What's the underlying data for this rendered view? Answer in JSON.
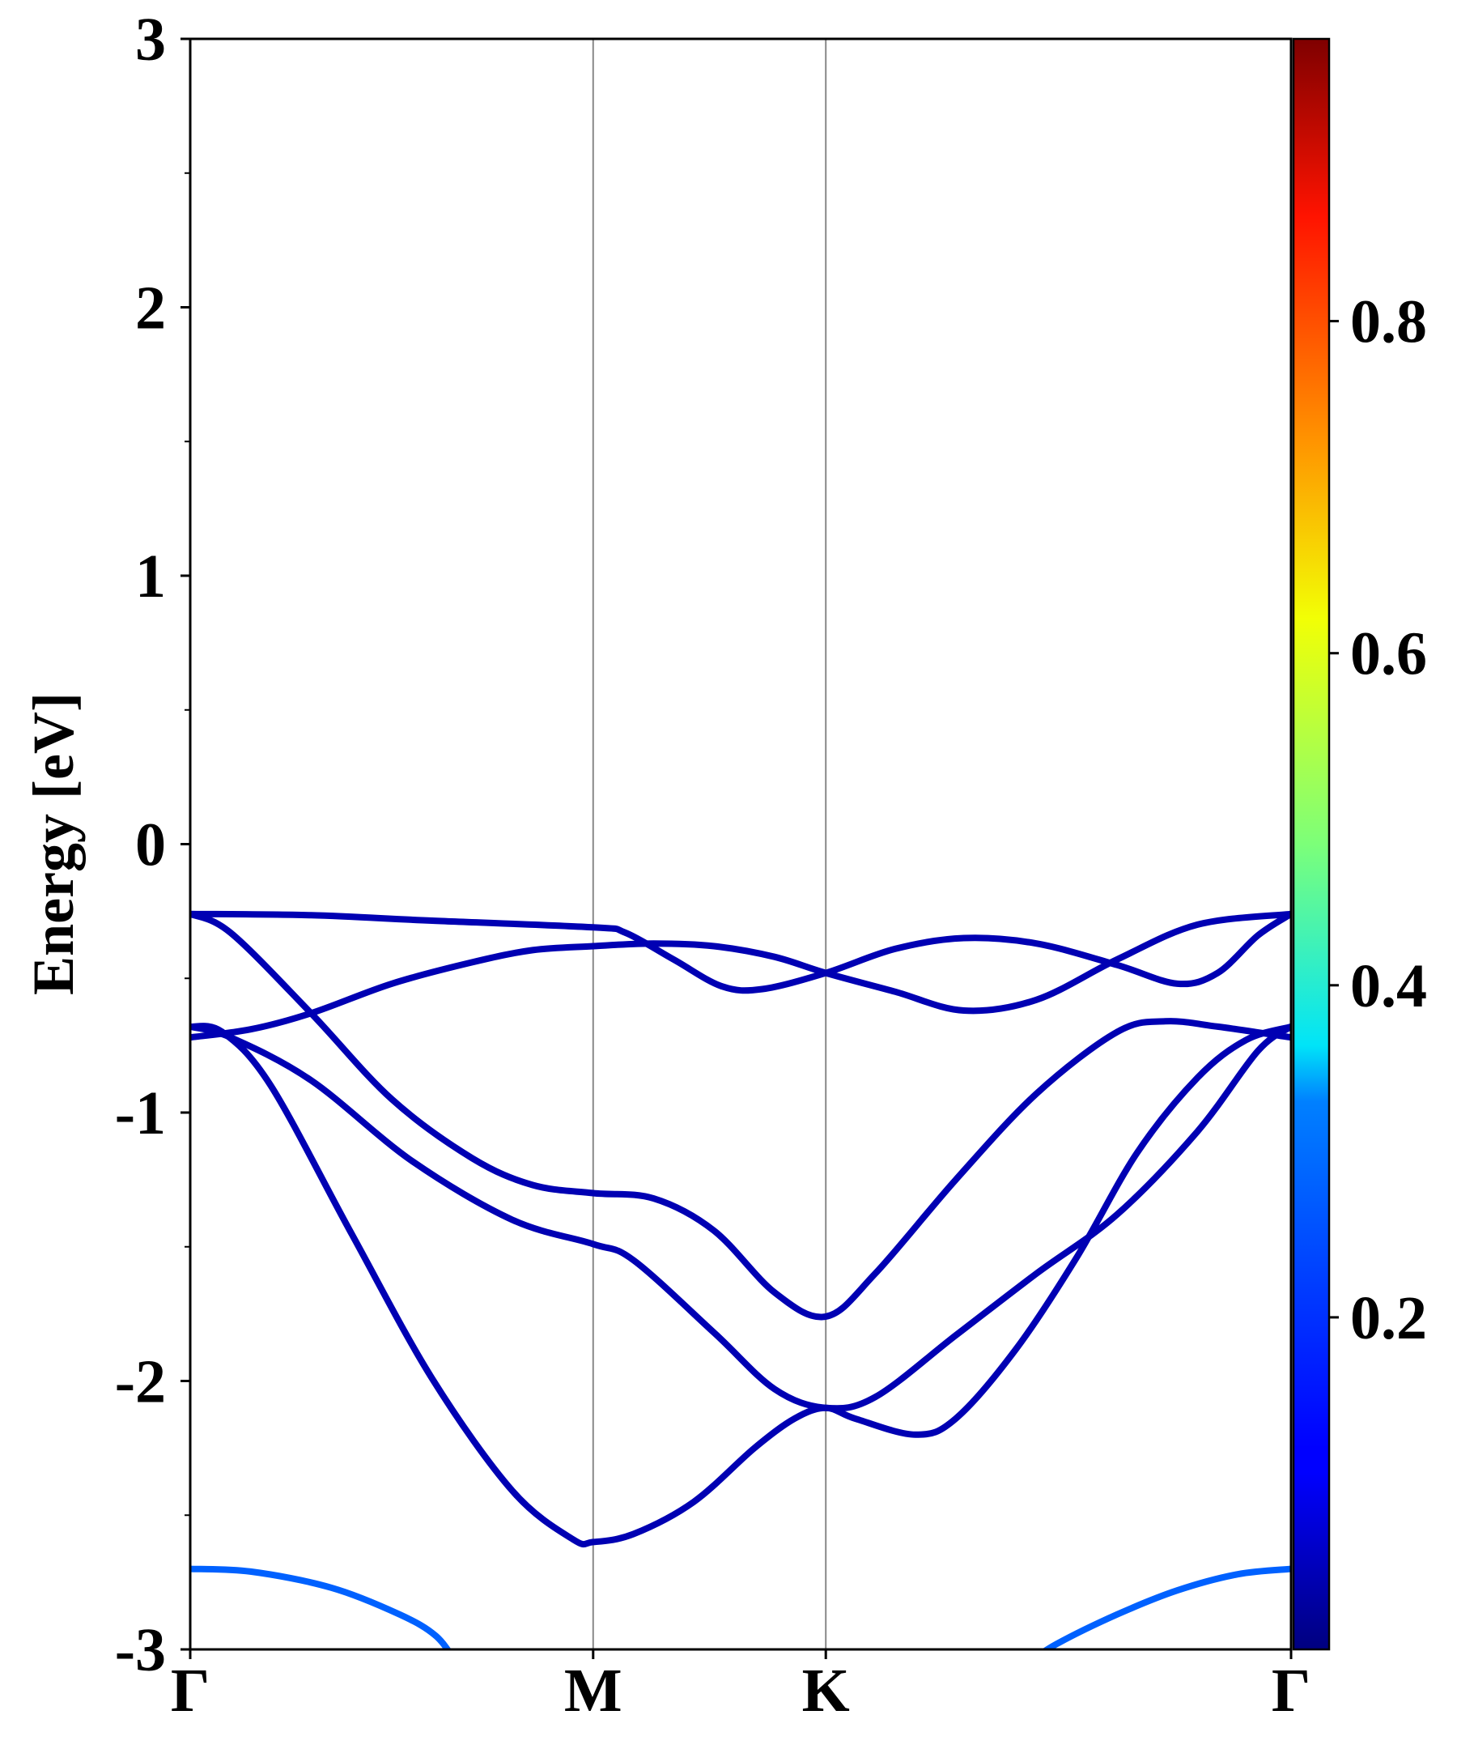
{
  "chart_data": {
    "type": "line",
    "title": "",
    "xlabel": "",
    "ylabel": "Energy [eV]",
    "ylim": [
      -3,
      3
    ],
    "grid": false,
    "legend": "none",
    "x_ticks": [
      "Γ",
      "M",
      "K",
      "Γ"
    ],
    "x_tick_positions": [
      0,
      1,
      1.5774,
      2.7321
    ],
    "y_ticks": [
      "3",
      "2",
      "1",
      "0",
      "-1",
      "-2",
      "-3"
    ],
    "y_tick_values": [
      3,
      2,
      1,
      0,
      -1,
      -2,
      -3
    ],
    "colorbar": {
      "ticks": [
        "0.2",
        "0.4",
        "0.6",
        "0.8"
      ],
      "tick_values": [
        0.2,
        0.4,
        0.6,
        0.8
      ],
      "range": [
        0.0,
        0.97
      ],
      "colormap": "jet"
    },
    "series": [
      {
        "weight": 0.05,
        "points": [
          [
            0,
            -0.26
          ],
          [
            0.3,
            -0.265
          ],
          [
            0.6,
            -0.285
          ],
          [
            1.0,
            -0.31
          ],
          [
            1.08,
            -0.33
          ],
          [
            1.2,
            -0.43
          ],
          [
            1.32,
            -0.53
          ],
          [
            1.42,
            -0.54
          ],
          [
            1.5774,
            -0.48
          ],
          [
            1.75,
            -0.39
          ],
          [
            1.92,
            -0.35
          ],
          [
            2.1,
            -0.37
          ],
          [
            2.3,
            -0.45
          ],
          [
            2.45,
            -0.52
          ],
          [
            2.55,
            -0.48
          ],
          [
            2.65,
            -0.34
          ],
          [
            2.7321,
            -0.26
          ]
        ]
      },
      {
        "weight": 0.05,
        "points": [
          [
            0,
            -0.72
          ],
          [
            0.15,
            -0.69
          ],
          [
            0.3,
            -0.63
          ],
          [
            0.5,
            -0.52
          ],
          [
            0.7,
            -0.44
          ],
          [
            0.85,
            -0.395
          ],
          [
            1.0,
            -0.38
          ],
          [
            1.15,
            -0.37
          ],
          [
            1.3,
            -0.38
          ],
          [
            1.45,
            -0.42
          ],
          [
            1.5774,
            -0.48
          ],
          [
            1.75,
            -0.55
          ],
          [
            1.92,
            -0.62
          ],
          [
            2.1,
            -0.58
          ],
          [
            2.3,
            -0.43
          ],
          [
            2.5,
            -0.3
          ],
          [
            2.7321,
            -0.26
          ]
        ]
      },
      {
        "weight": 0.05,
        "points": [
          [
            0,
            -0.26
          ],
          [
            0.1,
            -0.33
          ],
          [
            0.3,
            -0.63
          ],
          [
            0.5,
            -0.95
          ],
          [
            0.7,
            -1.17
          ],
          [
            0.85,
            -1.27
          ],
          [
            1.0,
            -1.3
          ],
          [
            1.15,
            -1.32
          ],
          [
            1.3,
            -1.44
          ],
          [
            1.45,
            -1.67
          ],
          [
            1.5774,
            -1.76
          ],
          [
            1.7,
            -1.6
          ],
          [
            1.9,
            -1.25
          ],
          [
            2.1,
            -0.93
          ],
          [
            2.3,
            -0.7
          ],
          [
            2.42,
            -0.66
          ],
          [
            2.55,
            -0.68
          ],
          [
            2.7321,
            -0.72
          ]
        ]
      },
      {
        "weight": 0.05,
        "points": [
          [
            0,
            -0.68
          ],
          [
            0.1,
            -0.72
          ],
          [
            0.3,
            -0.88
          ],
          [
            0.55,
            -1.18
          ],
          [
            0.8,
            -1.4
          ],
          [
            1.0,
            -1.49
          ],
          [
            1.1,
            -1.55
          ],
          [
            1.3,
            -1.82
          ],
          [
            1.45,
            -2.03
          ],
          [
            1.5774,
            -2.1
          ],
          [
            1.7,
            -2.06
          ],
          [
            1.9,
            -1.83
          ],
          [
            2.1,
            -1.6
          ],
          [
            2.3,
            -1.38
          ],
          [
            2.5,
            -1.07
          ],
          [
            2.65,
            -0.77
          ],
          [
            2.7321,
            -0.68
          ]
        ]
      },
      {
        "weight": 0.05,
        "points": [
          [
            0,
            -0.68
          ],
          [
            0.08,
            -0.7
          ],
          [
            0.2,
            -0.9
          ],
          [
            0.4,
            -1.45
          ],
          [
            0.6,
            -1.99
          ],
          [
            0.8,
            -2.41
          ],
          [
            0.95,
            -2.59
          ],
          [
            1.0,
            -2.6
          ],
          [
            1.1,
            -2.57
          ],
          [
            1.25,
            -2.45
          ],
          [
            1.4,
            -2.25
          ],
          [
            1.5,
            -2.14
          ],
          [
            1.5774,
            -2.1
          ],
          [
            1.65,
            -2.14
          ],
          [
            1.8,
            -2.2
          ],
          [
            1.9,
            -2.14
          ],
          [
            2.05,
            -1.88
          ],
          [
            2.2,
            -1.54
          ],
          [
            2.35,
            -1.15
          ],
          [
            2.5,
            -0.87
          ],
          [
            2.62,
            -0.73
          ],
          [
            2.7321,
            -0.68
          ]
        ]
      },
      {
        "weight": 0.22,
        "points": [
          [
            0,
            -2.7
          ],
          [
            0.15,
            -2.71
          ],
          [
            0.35,
            -2.77
          ],
          [
            0.52,
            -2.87
          ],
          [
            0.61,
            -2.95
          ],
          [
            0.66,
            -3.05
          ]
        ]
      },
      {
        "weight": 0.22,
        "points": [
          [
            2.08,
            -3.05
          ],
          [
            2.15,
            -2.98
          ],
          [
            2.3,
            -2.87
          ],
          [
            2.45,
            -2.78
          ],
          [
            2.6,
            -2.72
          ],
          [
            2.7321,
            -2.7
          ]
        ]
      }
    ]
  }
}
